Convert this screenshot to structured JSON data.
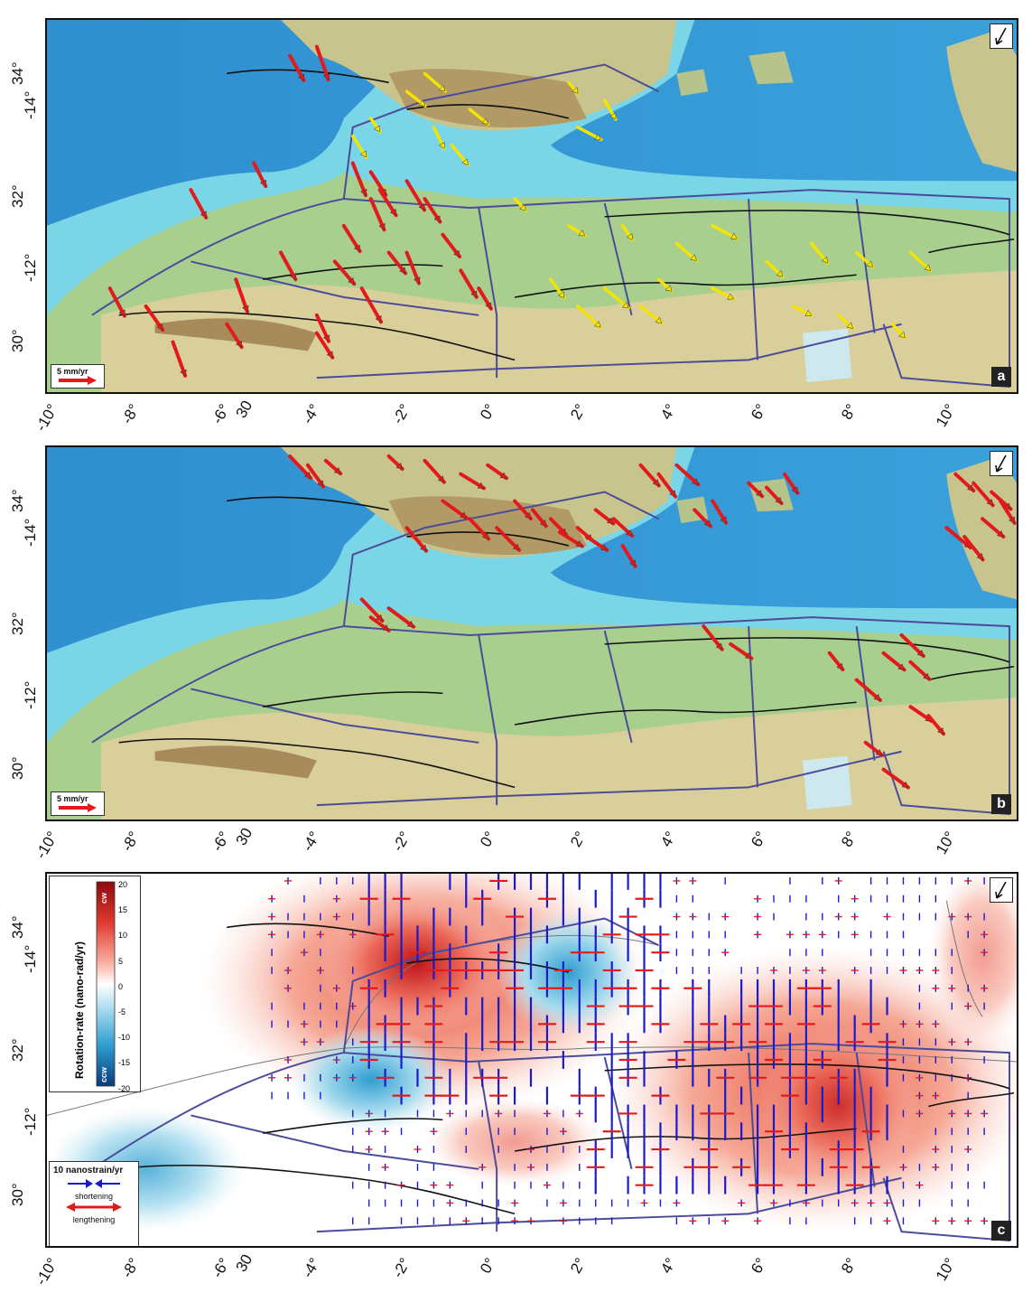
{
  "panels": [
    {
      "letter": "a",
      "scale_label": "5 mm/yr"
    },
    {
      "letter": "b",
      "scale_label": "5 mm/yr"
    },
    {
      "letter": "c"
    }
  ],
  "axes": {
    "y_labels": [
      "34°",
      "32°",
      "30°"
    ],
    "y_minor": [
      "-14°",
      "-12°"
    ],
    "x_labels": [
      "-10°",
      "-8°",
      "-6°",
      "-4°",
      "-2°",
      "0°",
      "2°",
      "4°",
      "6°",
      "8°",
      "10°"
    ],
    "x_extra": "30"
  },
  "colorbar": {
    "title": "Rotation-rate (nano-rad/yr)",
    "top_label": "cw",
    "bottom_label": "ccw",
    "ticks": [
      "20",
      "15",
      "10",
      "5",
      "0",
      "-5",
      "-10",
      "-15",
      "-20"
    ]
  },
  "strain_legend": {
    "title": "10 nanostrain/yr",
    "shortening": "shortening",
    "lengthening": "lengthening"
  },
  "colors": {
    "sea_deep": "#2a86c9",
    "sea_shallow": "#6fd0e8",
    "land_low": "#9fc98a",
    "land_mid": "#d8cf98",
    "land_high": "#a08a5c",
    "block_outline": "#4b4b9a",
    "fault": "#111111",
    "arrow_red": "#e31a1c",
    "arrow_yellow": "#f5e400",
    "strain_blue": "#1a1acc",
    "cw": "#c0141a",
    "ccw": "#0b5aa0"
  }
}
